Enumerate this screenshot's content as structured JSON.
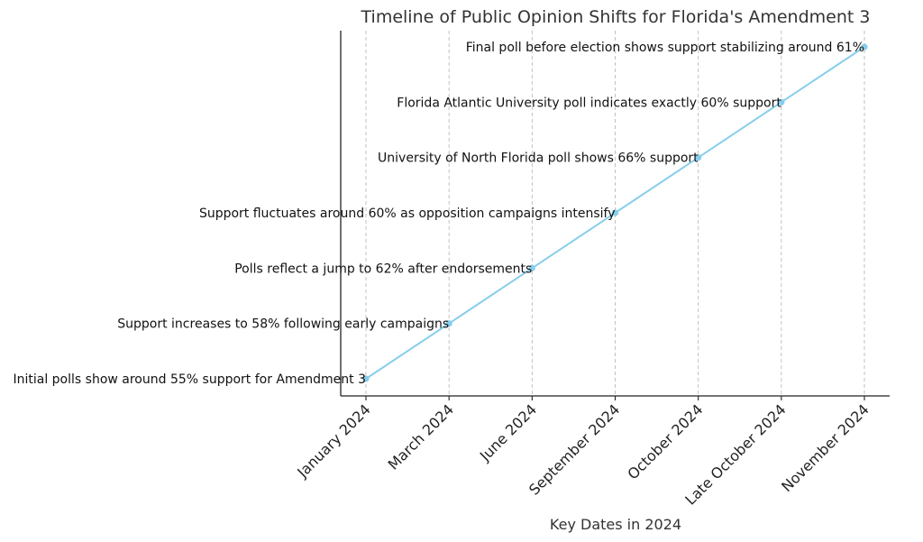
{
  "chart_data": {
    "type": "line",
    "title": "Timeline of Public Opinion Shifts for Florida's Amendment 3",
    "xlabel": "Key Dates in 2024",
    "ylabel": "",
    "categories": [
      "January 2024",
      "March 2024",
      "June 2024",
      "September 2024",
      "October 2024",
      "Late October 2024",
      "November 2024"
    ],
    "series": [
      {
        "values": [
          0,
          1,
          2,
          3,
          4,
          5,
          6
        ]
      }
    ],
    "annotations": [
      "Initial polls show around 55% support for Amendment 3",
      "Support increases to 58% following early campaigns",
      "Polls reflect a jump to 62% after endorsements",
      "Support fluctuates around 60% as opposition campaigns intensify",
      "University of North Florida poll shows 66% support",
      "Florida Atlantic University poll indicates exactly 60% support",
      "Final poll before election shows support stabilizing around 61%"
    ],
    "grid": "vertical-dashed",
    "line_color": "#87CEEB"
  }
}
